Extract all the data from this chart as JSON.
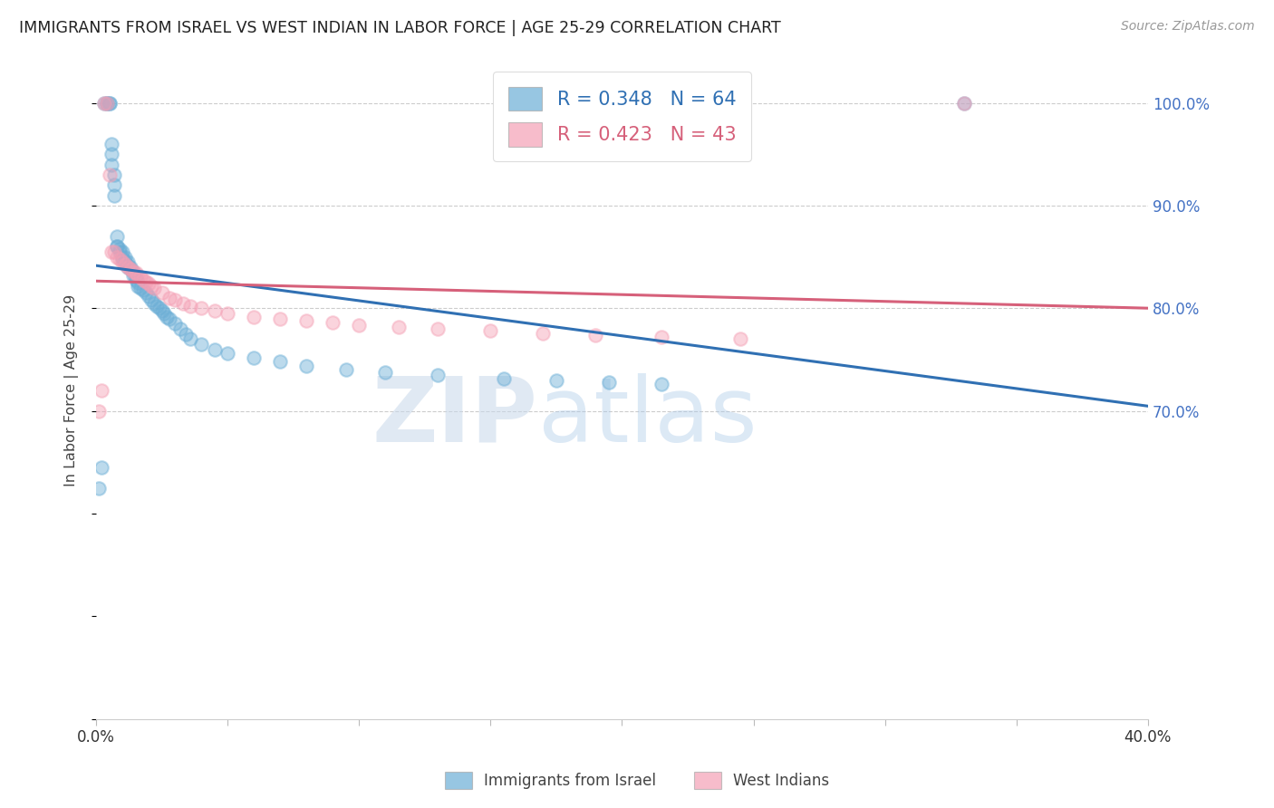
{
  "title": "IMMIGRANTS FROM ISRAEL VS WEST INDIAN IN LABOR FORCE | AGE 25-29 CORRELATION CHART",
  "source": "Source: ZipAtlas.com",
  "ylabel": "In Labor Force | Age 25-29",
  "legend_label_1": "Immigrants from Israel",
  "legend_label_2": "West Indians",
  "r1": 0.348,
  "n1": 64,
  "r2": 0.423,
  "n2": 43,
  "color_israel": "#6baed6",
  "color_west": "#f4a0b5",
  "color_israel_line": "#3070b3",
  "color_west_line": "#d6607a",
  "xlim": [
    0.0,
    0.4
  ],
  "ylim": [
    0.4,
    1.04
  ],
  "yticks_right": [
    1.0,
    0.9,
    0.8,
    0.7
  ],
  "ytick_right_labels": [
    "100.0%",
    "90.0%",
    "80.0%",
    "70.0%"
  ],
  "watermark_zip": "ZIP",
  "watermark_atlas": "atlas",
  "background": "#ffffff",
  "scatter_israel_x": [
    0.001,
    0.002,
    0.003,
    0.004,
    0.004,
    0.005,
    0.005,
    0.006,
    0.006,
    0.006,
    0.007,
    0.007,
    0.007,
    0.008,
    0.008,
    0.008,
    0.009,
    0.009,
    0.01,
    0.01,
    0.01,
    0.011,
    0.011,
    0.012,
    0.012,
    0.012,
    0.013,
    0.013,
    0.014,
    0.014,
    0.015,
    0.015,
    0.016,
    0.016,
    0.017,
    0.018,
    0.019,
    0.02,
    0.021,
    0.022,
    0.023,
    0.024,
    0.025,
    0.026,
    0.027,
    0.028,
    0.03,
    0.032,
    0.034,
    0.036,
    0.04,
    0.045,
    0.05,
    0.06,
    0.07,
    0.08,
    0.095,
    0.11,
    0.13,
    0.155,
    0.175,
    0.195,
    0.215,
    0.33
  ],
  "scatter_israel_y": [
    0.625,
    0.645,
    1.0,
    1.0,
    1.0,
    1.0,
    1.0,
    0.96,
    0.95,
    0.94,
    0.93,
    0.92,
    0.91,
    0.87,
    0.86,
    0.86,
    0.858,
    0.855,
    0.855,
    0.85,
    0.848,
    0.85,
    0.845,
    0.845,
    0.84,
    0.842,
    0.84,
    0.838,
    0.836,
    0.832,
    0.83,
    0.828,
    0.825,
    0.822,
    0.82,
    0.818,
    0.815,
    0.812,
    0.808,
    0.805,
    0.802,
    0.8,
    0.798,
    0.795,
    0.792,
    0.79,
    0.785,
    0.78,
    0.775,
    0.77,
    0.765,
    0.76,
    0.756,
    0.752,
    0.748,
    0.744,
    0.74,
    0.738,
    0.735,
    0.732,
    0.73,
    0.728,
    0.726,
    1.0
  ],
  "scatter_west_x": [
    0.001,
    0.002,
    0.003,
    0.004,
    0.005,
    0.006,
    0.007,
    0.008,
    0.009,
    0.01,
    0.011,
    0.012,
    0.013,
    0.014,
    0.015,
    0.016,
    0.017,
    0.018,
    0.019,
    0.02,
    0.021,
    0.022,
    0.025,
    0.028,
    0.03,
    0.033,
    0.036,
    0.04,
    0.045,
    0.05,
    0.06,
    0.07,
    0.08,
    0.09,
    0.1,
    0.115,
    0.13,
    0.15,
    0.17,
    0.19,
    0.215,
    0.245,
    0.33
  ],
  "scatter_west_y": [
    0.7,
    0.72,
    1.0,
    1.0,
    0.93,
    0.855,
    0.855,
    0.85,
    0.848,
    0.845,
    0.843,
    0.84,
    0.838,
    0.836,
    0.835,
    0.832,
    0.83,
    0.828,
    0.826,
    0.824,
    0.822,
    0.82,
    0.815,
    0.81,
    0.808,
    0.805,
    0.802,
    0.8,
    0.798,
    0.795,
    0.792,
    0.79,
    0.788,
    0.786,
    0.784,
    0.782,
    0.78,
    0.778,
    0.776,
    0.774,
    0.772,
    0.77,
    1.0
  ]
}
